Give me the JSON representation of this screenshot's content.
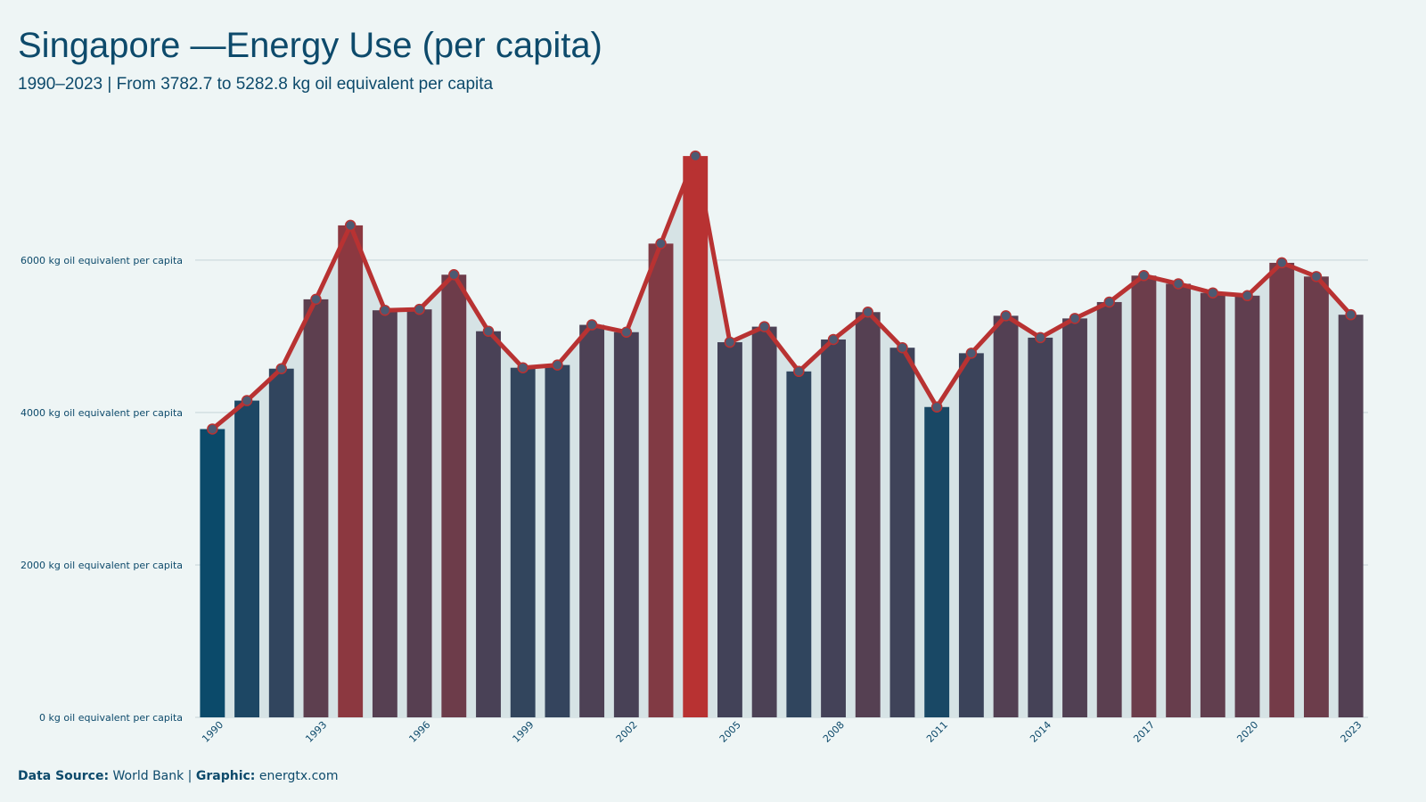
{
  "chart_data": {
    "type": "bar",
    "title": "Singapore —Energy Use (per capita)",
    "subtitle": "1990–2023 | From 3782.7 to 5282.8 kg oil equivalent per capita",
    "footer": [
      "Data Source:",
      "World Bank |",
      "Graphic:",
      "energtx.com"
    ],
    "categories": [
      "1990",
      null,
      null,
      "1993",
      null,
      null,
      "1996",
      null,
      null,
      "1999",
      null,
      null,
      "2002",
      null,
      null,
      "2005",
      null,
      null,
      "2008",
      null,
      null,
      "2011",
      null,
      null,
      "2014",
      null,
      null,
      "2017",
      null,
      null,
      "2020",
      null,
      null,
      "2023"
    ],
    "values": [
      3782.7,
      4156,
      4575,
      5485,
      6455,
      5341,
      5353,
      5808,
      5066,
      4587,
      4623,
      5150,
      5054,
      6216,
      7365,
      4922,
      5126,
      4539,
      4958,
      5317,
      4850,
      4072,
      4778,
      5269,
      4982,
      5234,
      5449,
      5796,
      5689,
      5569,
      5533,
      5964,
      5784,
      5282.8
    ],
    "bar_colors": [
      "#0b4a6a",
      "#b83232"
    ],
    "line_color": "#b83232",
    "line_overlay": true,
    "ylim": [
      0,
      7600
    ],
    "yticks": [
      {
        "value": 0,
        "label": "0 kg oil equivalent per capita"
      },
      {
        "value": 2000,
        "label": "2000 kg oil equivalent per capita"
      },
      {
        "value": 4000,
        "label": "4000 kg oil equivalent per capita"
      },
      {
        "value": 6000,
        "label": "6000 kg oil equivalent per capita"
      }
    ],
    "grid": true
  }
}
